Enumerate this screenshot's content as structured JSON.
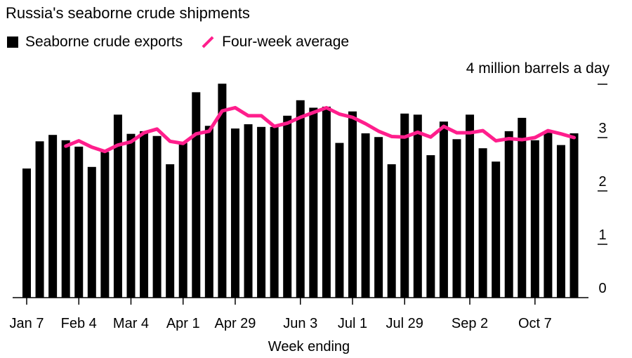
{
  "chart_data": {
    "type": "bar",
    "title": "Russia's seaborne crude shipments",
    "xlabel": "Week ending",
    "ylabel": "4 million barrels a day",
    "ylim": [
      0,
      4
    ],
    "yticks": [
      "0",
      "1",
      "2",
      "3"
    ],
    "xtick_labels": [
      {
        "index": 0,
        "label": "Jan 7"
      },
      {
        "index": 4,
        "label": "Feb 4"
      },
      {
        "index": 8,
        "label": "Mar 4"
      },
      {
        "index": 12,
        "label": "Apr 1"
      },
      {
        "index": 16,
        "label": "Apr 29"
      },
      {
        "index": 21,
        "label": "Jun 3"
      },
      {
        "index": 25,
        "label": "Jul 1"
      },
      {
        "index": 29,
        "label": "Jul 29"
      },
      {
        "index": 34,
        "label": "Sep 2"
      },
      {
        "index": 39,
        "label": "Oct 7"
      }
    ],
    "series": [
      {
        "name": "Seaborne crude exports",
        "type": "bar",
        "color": "#000000",
        "values": [
          2.42,
          2.93,
          3.05,
          2.95,
          2.83,
          2.45,
          2.73,
          3.43,
          3.07,
          3.12,
          3.03,
          2.5,
          2.9,
          3.85,
          3.22,
          4.01,
          3.17,
          3.25,
          3.2,
          3.2,
          3.41,
          3.7,
          3.56,
          3.58,
          2.9,
          3.49,
          3.08,
          3.01,
          2.5,
          3.45,
          3.43,
          2.67,
          3.3,
          2.97,
          3.43,
          2.8,
          2.55,
          3.12,
          3.37,
          2.95,
          3.09,
          2.86,
          3.08
        ]
      },
      {
        "name": "Four-week average",
        "type": "line",
        "color": "#ff1e8c",
        "values": [
          null,
          null,
          null,
          2.84,
          2.94,
          2.82,
          2.74,
          2.86,
          2.92,
          3.09,
          3.16,
          2.93,
          2.89,
          3.07,
          3.12,
          3.5,
          3.56,
          3.41,
          3.41,
          3.21,
          3.27,
          3.38,
          3.47,
          3.56,
          3.44,
          3.38,
          3.26,
          3.12,
          3.02,
          3.01,
          3.1,
          3.01,
          3.21,
          3.09,
          3.09,
          3.13,
          2.94,
          2.98,
          2.96,
          3.0,
          3.13,
          3.07,
          3.0
        ]
      }
    ],
    "legend": "top-left"
  }
}
